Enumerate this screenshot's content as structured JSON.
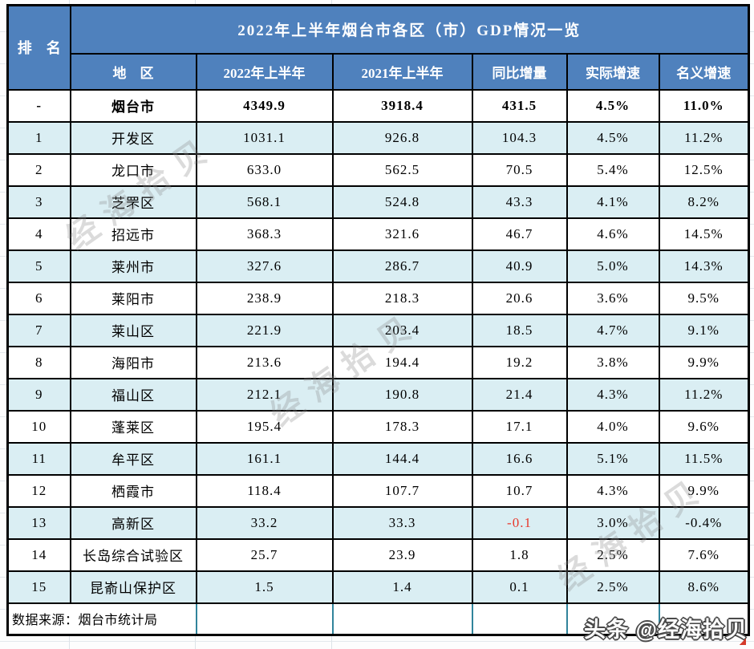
{
  "chart_data": {
    "type": "table",
    "title": "2022年上半年烟台市各区（市）GDP情况一览",
    "columns": [
      "排　名",
      "地　区",
      "2022年上半年",
      "2021年上半年",
      "同比增量",
      "实际增速",
      "名义增速"
    ],
    "total": [
      "-",
      "烟台市",
      "4349.9",
      "3918.4",
      "431.5",
      "4.5%",
      "11.0%"
    ],
    "rows": [
      [
        "1",
        "开发区",
        "1031.1",
        "926.8",
        "104.3",
        "4.5%",
        "11.2%"
      ],
      [
        "2",
        "龙口市",
        "633.0",
        "562.5",
        "70.5",
        "5.4%",
        "12.5%"
      ],
      [
        "3",
        "芝罘区",
        "568.1",
        "524.8",
        "43.3",
        "4.1%",
        "8.2%"
      ],
      [
        "4",
        "招远市",
        "368.3",
        "321.6",
        "46.7",
        "4.6%",
        "14.5%"
      ],
      [
        "5",
        "莱州市",
        "327.6",
        "286.7",
        "40.9",
        "5.0%",
        "14.3%"
      ],
      [
        "6",
        "莱阳市",
        "238.9",
        "218.3",
        "20.6",
        "3.6%",
        "9.5%"
      ],
      [
        "7",
        "莱山区",
        "221.9",
        "203.4",
        "18.5",
        "4.7%",
        "9.1%"
      ],
      [
        "8",
        "海阳市",
        "213.6",
        "194.4",
        "19.2",
        "3.8%",
        "9.9%"
      ],
      [
        "9",
        "福山区",
        "212.1",
        "190.8",
        "21.4",
        "4.3%",
        "11.2%"
      ],
      [
        "10",
        "蓬莱区",
        "195.4",
        "178.3",
        "17.1",
        "4.0%",
        "9.6%"
      ],
      [
        "11",
        "牟平区",
        "161.1",
        "144.4",
        "16.6",
        "5.1%",
        "11.5%"
      ],
      [
        "12",
        "栖霞市",
        "118.4",
        "107.7",
        "10.7",
        "4.3%",
        "9.9%"
      ],
      [
        "13",
        "高新区",
        "33.2",
        "33.3",
        "-0.1",
        "3.0%",
        "-0.4%"
      ],
      [
        "14",
        "长岛综合试验区",
        "25.7",
        "23.9",
        "1.8",
        "2.5%",
        "7.6%"
      ],
      [
        "15",
        "昆嵛山保护区",
        "1.5",
        "1.4",
        "0.1",
        "2.5%",
        "8.6%"
      ]
    ],
    "source": "数据来源：烟台市统计局"
  },
  "footer": {
    "source": "数据来源：烟台市统计局",
    "credit": "头条 @经海拾贝"
  },
  "watermark": {
    "text": "经海拾贝"
  },
  "colors": {
    "header_blue": "#4f81bd",
    "total_green": "#90c851",
    "row_alt_blue": "#daeef3",
    "negative_red": "#e8392d",
    "footer_teal": "#31849b"
  }
}
